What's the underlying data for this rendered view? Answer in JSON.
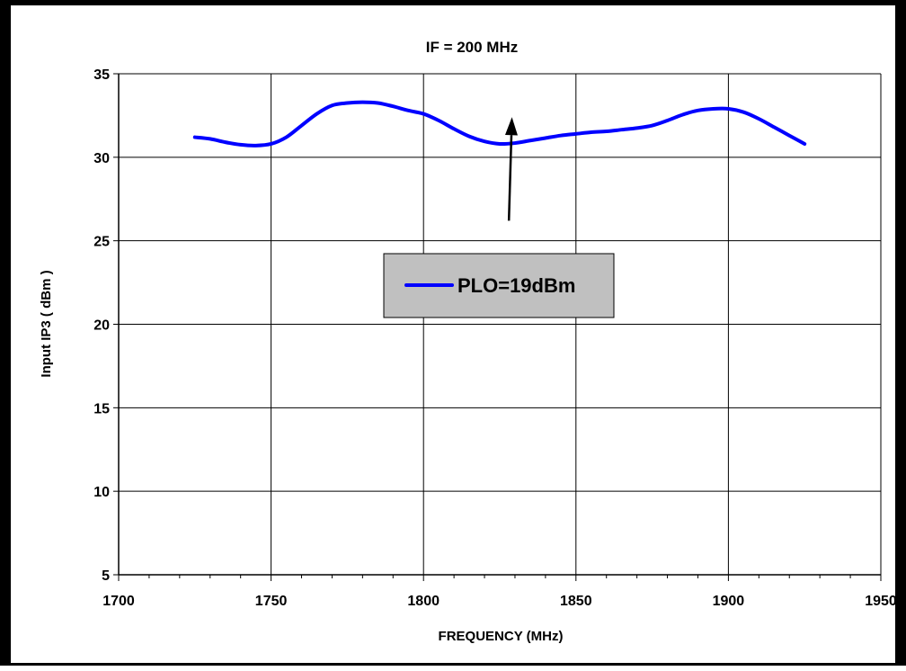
{
  "chart_data": {
    "type": "line",
    "title": "IF = 200 MHz",
    "xlabel": "FREQUENCY (MHz)",
    "ylabel": "Input IP3 ( dBm )",
    "xlim": [
      1700,
      1950
    ],
    "ylim": [
      5,
      35
    ],
    "xticks": [
      1700,
      1750,
      1800,
      1850,
      1900,
      1950
    ],
    "yticks": [
      5,
      10,
      15,
      20,
      25,
      30,
      35
    ],
    "x_minor_step": 10,
    "grid": true,
    "legend_position": "center",
    "series": [
      {
        "name": "PLO=19dBm",
        "color": "#0000ff",
        "x": [
          1725,
          1730,
          1735,
          1740,
          1745,
          1750,
          1755,
          1760,
          1765,
          1770,
          1775,
          1780,
          1785,
          1790,
          1795,
          1800,
          1805,
          1810,
          1815,
          1820,
          1825,
          1830,
          1835,
          1840,
          1845,
          1850,
          1855,
          1860,
          1865,
          1870,
          1875,
          1880,
          1885,
          1890,
          1895,
          1900,
          1905,
          1910,
          1915,
          1920,
          1925
        ],
        "y": [
          31.2,
          31.1,
          30.9,
          30.75,
          30.7,
          30.8,
          31.2,
          31.9,
          32.6,
          33.1,
          33.25,
          33.3,
          33.25,
          33.05,
          32.8,
          32.6,
          32.2,
          31.7,
          31.25,
          30.95,
          30.8,
          30.85,
          31.0,
          31.15,
          31.3,
          31.4,
          31.5,
          31.55,
          31.65,
          31.75,
          31.9,
          32.2,
          32.55,
          32.8,
          32.9,
          32.9,
          32.7,
          32.3,
          31.8,
          31.3,
          30.8
        ]
      }
    ],
    "annotations": [
      {
        "type": "arrow",
        "from": [
          1828,
          26.2
        ],
        "to": [
          1829,
          32.4
        ]
      }
    ]
  }
}
